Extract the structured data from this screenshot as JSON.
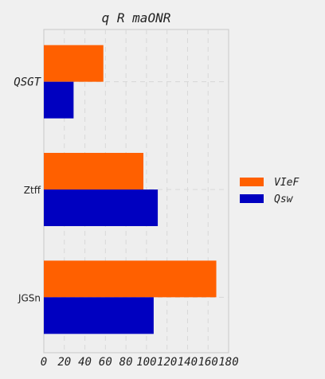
{
  "chart_data": {
    "type": "bar",
    "orientation": "horizontal",
    "title": "q R maONR",
    "categories": [
      "QSGT",
      "Ztff",
      "JGSn"
    ],
    "series": [
      {
        "name": "VIeF",
        "values": [
          58,
          97,
          168
        ],
        "color": "#ff6000"
      },
      {
        "name": "Qsw",
        "values": [
          29,
          111,
          107
        ],
        "color": "#0000c0"
      }
    ],
    "xlim": [
      0,
      180
    ],
    "xticks": [
      0,
      20,
      40,
      60,
      80,
      100,
      120,
      140,
      160,
      180
    ],
    "xlabel": "",
    "ylabel": "",
    "grid": true,
    "legend_position": "right"
  }
}
